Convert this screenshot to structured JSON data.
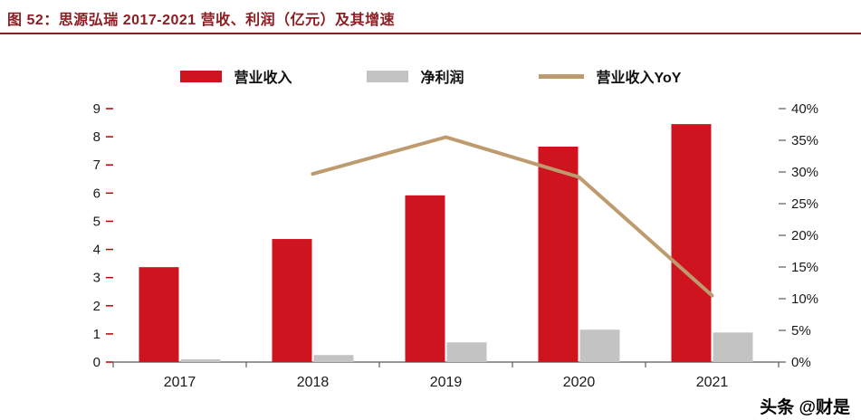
{
  "header": {
    "title": "图 52：思源弘瑞 2017-2021 营收、利润（亿元）及其增速"
  },
  "legend": [
    {
      "label": "营业收入",
      "type": "bar",
      "color": "#CE141E"
    },
    {
      "label": "净利润",
      "type": "bar",
      "color": "#C3C3C3"
    },
    {
      "label": "营业收入YoY",
      "type": "line",
      "color": "#BE9B6E"
    }
  ],
  "watermark": "头条 @财是",
  "chart_data": {
    "type": "bar",
    "subtype": "bar+line combo",
    "title": "思源弘瑞 2017-2021 营收、利润（亿元）及其增速",
    "categories": [
      "2017",
      "2018",
      "2019",
      "2020",
      "2021"
    ],
    "series": [
      {
        "name": "营业收入",
        "type": "bar",
        "axis": "left",
        "color": "#CE141E",
        "values": [
          3.37,
          4.37,
          5.92,
          7.65,
          8.45
        ]
      },
      {
        "name": "净利润",
        "type": "bar",
        "axis": "left",
        "color": "#C3C3C3",
        "values": [
          0.1,
          0.25,
          0.7,
          1.15,
          1.05
        ]
      },
      {
        "name": "营业收入YoY",
        "type": "line",
        "axis": "right",
        "color": "#BE9B6E",
        "values": [
          null,
          29.7,
          35.5,
          29.2,
          10.5
        ]
      }
    ],
    "left_axis": {
      "min": 0,
      "max": 9,
      "step": 1,
      "tick_labels": [
        "0",
        "1",
        "2",
        "3",
        "4",
        "5",
        "6",
        "7",
        "8",
        "9"
      ]
    },
    "right_axis": {
      "min": 0,
      "max": 40,
      "step": 5,
      "tick_labels": [
        "0%",
        "5%",
        "10%",
        "15%",
        "20%",
        "25%",
        "30%",
        "35%",
        "40%"
      ]
    },
    "grid": false,
    "legend_position": "top"
  }
}
